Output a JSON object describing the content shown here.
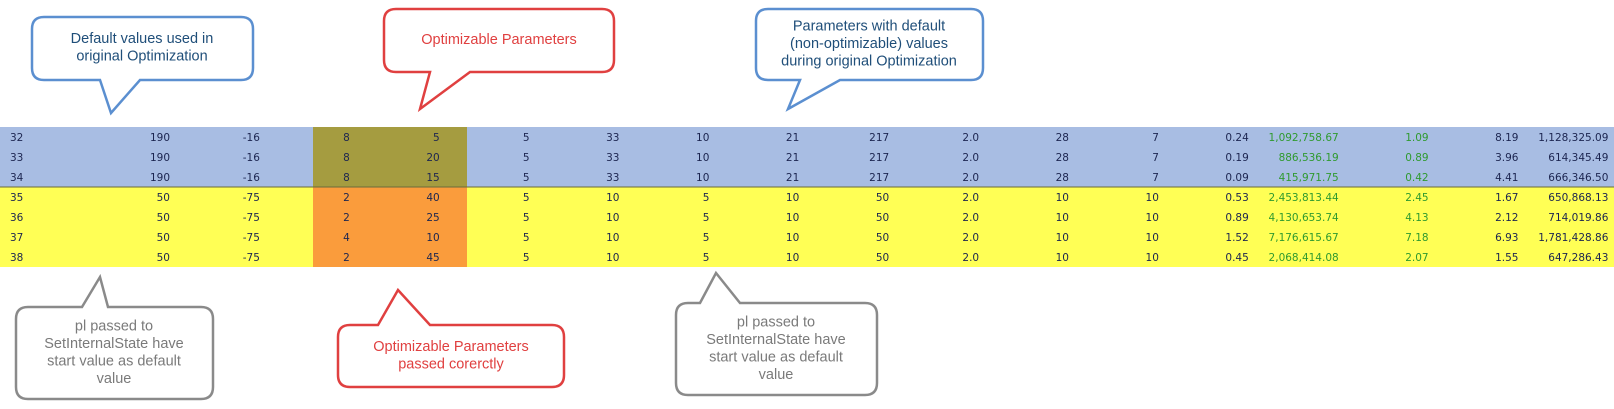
{
  "callouts": [
    {
      "lines": [
        "Default values used in",
        "original Optimization"
      ]
    },
    {
      "lines": [
        "Optimizable Parameters"
      ]
    },
    {
      "lines": [
        "Parameters with default",
        "(non-optimizable) values",
        "during original Optimization"
      ]
    },
    {
      "lines": [
        "pl passed to",
        "SetInternalState have",
        "start value as default",
        "value"
      ]
    },
    {
      "lines": [
        "Optimizable Parameters",
        "passed corerctly"
      ]
    },
    {
      "lines": [
        "pl passed to",
        "SetInternalState have",
        "start value as default",
        "value"
      ]
    }
  ],
  "table": {
    "rows": [
      [
        "32",
        "190",
        "-16",
        "8",
        "5",
        "5",
        "33",
        "10",
        "21",
        "217",
        "2.0",
        "28",
        "7",
        "0.24",
        "1,092,758.67",
        "1.09",
        "8.19",
        "1,128,325.09"
      ],
      [
        "33",
        "190",
        "-16",
        "8",
        "20",
        "5",
        "33",
        "10",
        "21",
        "217",
        "2.0",
        "28",
        "7",
        "0.19",
        "886,536.19",
        "0.89",
        "3.96",
        "614,345.49"
      ],
      [
        "34",
        "190",
        "-16",
        "8",
        "15",
        "5",
        "33",
        "10",
        "21",
        "217",
        "2.0",
        "28",
        "7",
        "0.09",
        "415,971.75",
        "0.42",
        "4.41",
        "666,346.50"
      ],
      [
        "35",
        "50",
        "-75",
        "2",
        "40",
        "5",
        "10",
        "5",
        "10",
        "50",
        "2.0",
        "10",
        "10",
        "0.53",
        "2,453,813.44",
        "2.45",
        "1.67",
        "650,868.13"
      ],
      [
        "36",
        "50",
        "-75",
        "2",
        "25",
        "5",
        "10",
        "5",
        "10",
        "50",
        "2.0",
        "10",
        "10",
        "0.89",
        "4,130,653.74",
        "4.13",
        "2.12",
        "714,019.86"
      ],
      [
        "37",
        "50",
        "-75",
        "4",
        "10",
        "5",
        "10",
        "5",
        "10",
        "50",
        "2.0",
        "10",
        "10",
        "1.52",
        "7,176,615.67",
        "7.18",
        "6.93",
        "1,781,428.86"
      ],
      [
        "38",
        "50",
        "-75",
        "2",
        "45",
        "5",
        "10",
        "5",
        "10",
        "50",
        "2.0",
        "10",
        "10",
        "0.45",
        "2,068,414.08",
        "2.07",
        "1.55",
        "647,286.43"
      ]
    ]
  }
}
